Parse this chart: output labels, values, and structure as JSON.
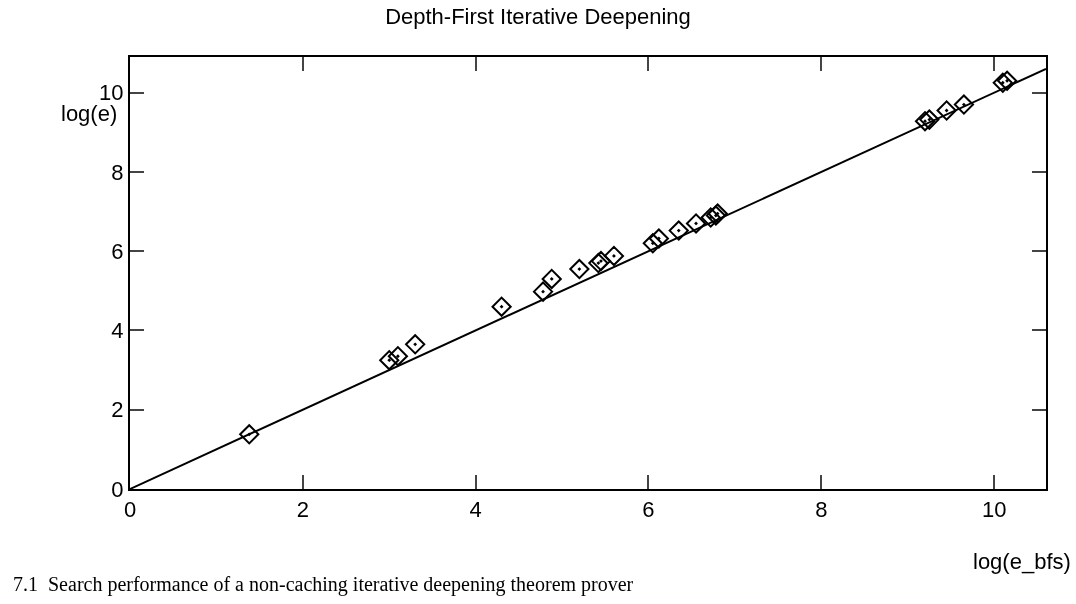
{
  "chart_data": {
    "type": "scatter",
    "title": "Depth-First Iterative Deepening",
    "xlabel": "log(e_bfs)",
    "ylabel": "log(e)",
    "x": [
      1.38,
      3.0,
      3.1,
      3.3,
      4.3,
      4.78,
      4.88,
      5.2,
      5.42,
      5.45,
      5.6,
      6.05,
      6.12,
      6.35,
      6.55,
      6.72,
      6.78,
      6.8,
      9.2,
      9.25,
      9.45,
      9.65,
      10.1,
      10.15
    ],
    "series": [
      {
        "color": "#000000",
        "marker": "diamond",
        "values": [
          1.38,
          3.25,
          3.35,
          3.65,
          4.6,
          4.98,
          5.3,
          5.55,
          5.7,
          5.75,
          5.88,
          6.2,
          6.32,
          6.52,
          6.7,
          6.85,
          6.9,
          6.95,
          9.28,
          9.32,
          9.55,
          9.7,
          10.25,
          10.3
        ]
      },
      {
        "type": "line",
        "color": "#000000",
        "marker": "none",
        "x": [
          0,
          10.6
        ],
        "values": [
          0,
          10.6
        ]
      }
    ],
    "xlim": [
      0,
      10.6
    ],
    "ylim": [
      0,
      10.9
    ],
    "xticks": [
      0,
      2,
      4,
      6,
      8,
      10
    ],
    "yticks": [
      0,
      2,
      4,
      6,
      8,
      10
    ],
    "grid": false,
    "annotations": [
      "7.1  Search performance of a non-caching iterative deepening theorem prover"
    ]
  }
}
